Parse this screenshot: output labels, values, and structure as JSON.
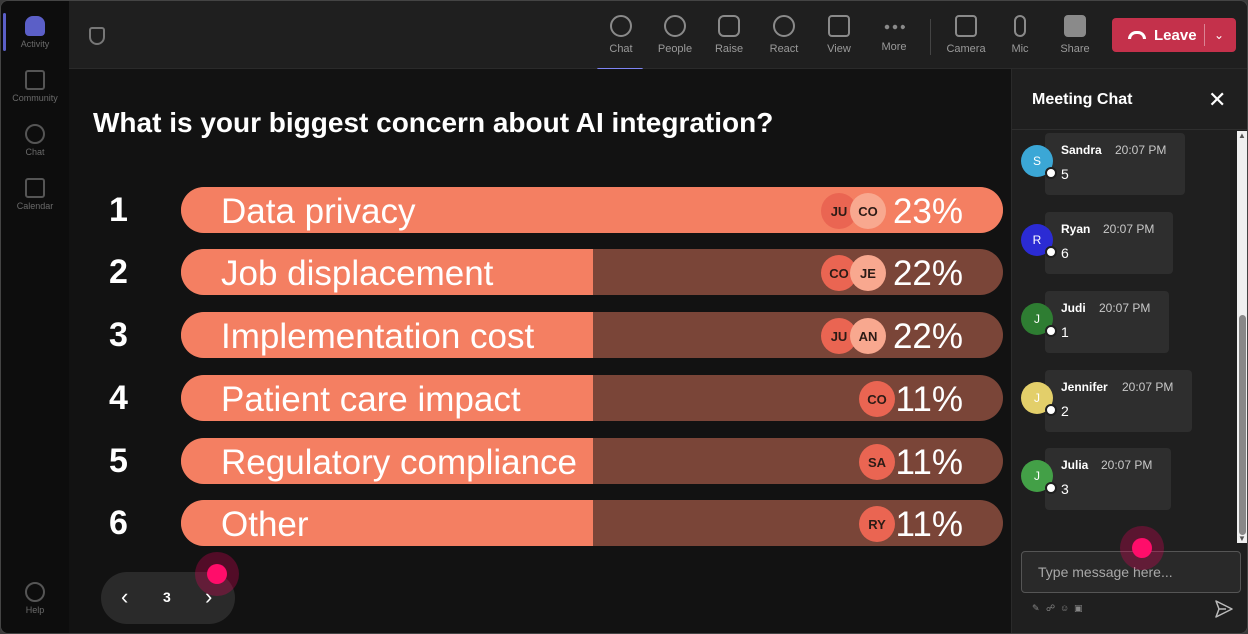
{
  "rail": {
    "items": [
      {
        "label": "Activity",
        "active": true
      },
      {
        "label": "Community",
        "active": false
      },
      {
        "label": "Chat",
        "active": false
      },
      {
        "label": "Calendar",
        "active": false
      }
    ],
    "help_label": "Help"
  },
  "toolbar": {
    "buttons": [
      {
        "label": "Chat",
        "icon": "chat-icon",
        "active": true
      },
      {
        "label": "People",
        "icon": "people-icon"
      },
      {
        "label": "Raise",
        "icon": "raise-hand-icon"
      },
      {
        "label": "React",
        "icon": "react-icon"
      },
      {
        "label": "View",
        "icon": "view-icon"
      },
      {
        "label": "More",
        "icon": "more-icon"
      },
      {
        "label": "Camera",
        "icon": "camera-icon"
      },
      {
        "label": "Mic",
        "icon": "mic-icon"
      },
      {
        "label": "Share",
        "icon": "share-icon"
      }
    ],
    "leave_label": "Leave",
    "leave_color": "#c4314b"
  },
  "poll": {
    "question": "What is your biggest concern about AI integration?",
    "options": [
      {
        "rank": "1",
        "label": "Data privacy",
        "percent": "23%",
        "value": 23,
        "avatars": [
          "JU",
          "CO"
        ]
      },
      {
        "rank": "2",
        "label": "Job displacement",
        "percent": "22%",
        "value": 22,
        "avatars": [
          "CO",
          "JE"
        ]
      },
      {
        "rank": "3",
        "label": "Implementation cost",
        "percent": "22%",
        "value": 22,
        "avatars": [
          "JU",
          "AN"
        ]
      },
      {
        "rank": "4",
        "label": "Patient care impact",
        "percent": "11%",
        "value": 11,
        "avatars": [
          "CO"
        ]
      },
      {
        "rank": "5",
        "label": "Regulatory compliance",
        "percent": "11%",
        "value": 11,
        "avatars": [
          "SA"
        ]
      },
      {
        "rank": "6",
        "label": "Other",
        "percent": "11%",
        "value": 11,
        "avatars": [
          "RY"
        ]
      }
    ],
    "bar_fill_color": "#f47f62",
    "bar_track_color": "#7a4538"
  },
  "pager": {
    "page": "3"
  },
  "chat": {
    "title": "Meeting Chat",
    "messages": [
      {
        "initial": "S",
        "name": "Sandra",
        "time": "20:07 PM",
        "text": "5",
        "color": "#3ba7d6"
      },
      {
        "initial": "R",
        "name": "Ryan",
        "time": "20:07 PM",
        "text": "6",
        "color": "#2b2bd4"
      },
      {
        "initial": "J",
        "name": "Judi",
        "time": "20:07 PM",
        "text": "1",
        "color": "#2e7d32"
      },
      {
        "initial": "J",
        "name": "Jennifer",
        "time": "20:07 PM",
        "text": "2",
        "color": "#e3cf6a"
      },
      {
        "initial": "J",
        "name": "Julia",
        "time": "20:07 PM",
        "text": "3",
        "color": "#43a047"
      }
    ],
    "input_placeholder": "Type message here..."
  }
}
